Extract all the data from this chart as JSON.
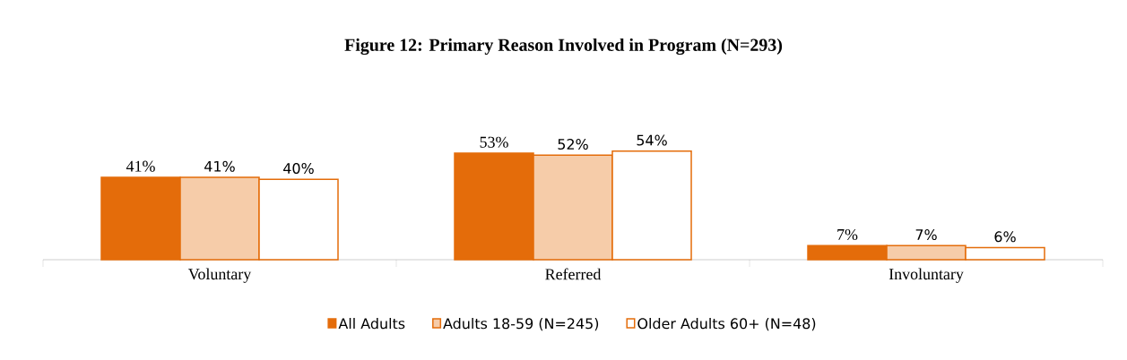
{
  "chart_data": {
    "type": "bar",
    "title": "Figure 12: Primary Reason Involved in Program (N=293)",
    "categories": [
      "Voluntary",
      "Referred",
      "Involuntary"
    ],
    "series": [
      {
        "name": "All Adults",
        "color": "#e46c0a",
        "values": [
          41,
          53,
          7
        ],
        "value_labels": [
          "41%",
          "53%",
          "7%"
        ]
      },
      {
        "name": "Adults 18-59 (N=245)",
        "color": "#e46c0a",
        "values": [
          41,
          52,
          7
        ],
        "value_labels": [
          "41%",
          "52%",
          "7%"
        ]
      },
      {
        "name": "Older Adults 60+ (N=48)",
        "color": "#e46c0a",
        "values": [
          40,
          54,
          6
        ],
        "value_labels": [
          "40%",
          "54%",
          "6%"
        ]
      }
    ],
    "legend": "bottom"
  }
}
